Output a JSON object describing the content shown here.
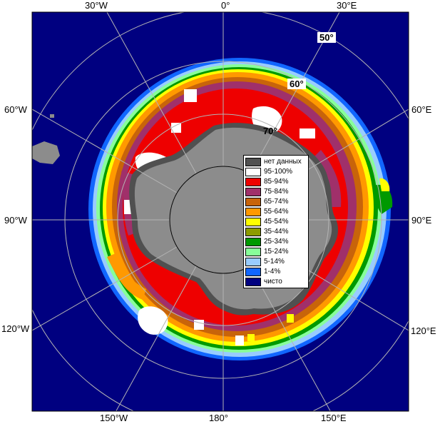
{
  "longitude_labels": {
    "lon_30w": "30°W",
    "lon_0": "0°",
    "lon_30e": "30°E",
    "lon_60w": "60°W",
    "lon_60e": "60°E",
    "lon_90w": "90°W",
    "lon_90e": "90°E",
    "lon_120w": "120°W",
    "lon_120e": "120°E",
    "lon_150w": "150°W",
    "lon_180": "180°",
    "lon_150e": "150°E"
  },
  "latitude_labels": {
    "lat_50": "50°",
    "lat_60": "60°",
    "lat_70": "70°"
  },
  "legend": [
    {
      "label": "нет данных",
      "color": "#505050"
    },
    {
      "label": "95-100%",
      "color": "#ffffff"
    },
    {
      "label": "85-94%",
      "color": "#ee0000"
    },
    {
      "label": "75-84%",
      "color": "#a0306a"
    },
    {
      "label": "65-74%",
      "color": "#c8640a"
    },
    {
      "label": "55-64%",
      "color": "#ff9900"
    },
    {
      "label": "45-54%",
      "color": "#ffff00"
    },
    {
      "label": "35-44%",
      "color": "#8c9b00"
    },
    {
      "label": "25-34%",
      "color": "#009900"
    },
    {
      "label": "15-24%",
      "color": "#88ff99"
    },
    {
      "label": "5-14%",
      "color": "#99ccff"
    },
    {
      "label": "1-4%",
      "color": "#1166ff"
    },
    {
      "label": "чисто",
      "color": "#000080"
    }
  ],
  "colors": {
    "ocean": "#000080",
    "land": "#8c8c8c",
    "nodata": "#505050",
    "graticule": "#b4b4b4"
  }
}
